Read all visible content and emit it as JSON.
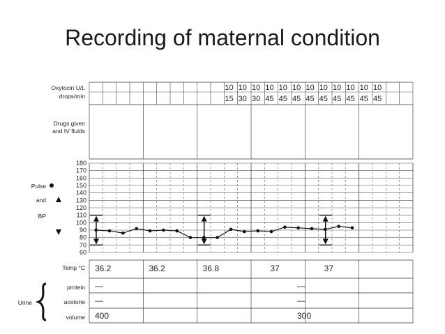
{
  "page": {
    "title": "Recording of maternal condition"
  },
  "labels": {
    "oxytocin_1": "Oxytocin U/L",
    "oxytocin_2": "drops/min",
    "drugs_1": "Drugs given",
    "drugs_2": "and IV fluids",
    "pulse": "Pulse",
    "and": "and",
    "bp": "BP",
    "temp": "Temp °C",
    "urine": "Urine",
    "protein": "protein",
    "acetone": "acetone",
    "volume": "volume"
  },
  "oxytocin": {
    "units": [
      "10",
      "10",
      "10",
      "10",
      "10",
      "10",
      "10",
      "10",
      "10",
      "10",
      "10",
      "10"
    ],
    "drops": [
      "15",
      "30",
      "30",
      "45",
      "45",
      "45",
      "45",
      "45",
      "45",
      "45",
      "45",
      "45"
    ],
    "start_column": 10
  },
  "temperature": [
    {
      "column": 0,
      "value": "36.2"
    },
    {
      "column": 4,
      "value": "36.2"
    },
    {
      "column": 8,
      "value": "36.8"
    },
    {
      "column": 13,
      "value": "37"
    },
    {
      "column": 17,
      "value": "37"
    }
  ],
  "urine": {
    "protein": [
      {
        "column": 0,
        "value": "—"
      },
      {
        "column": 15,
        "value": "—"
      }
    ],
    "acetone": [
      {
        "column": 0,
        "value": "—"
      },
      {
        "column": 15,
        "value": "—"
      }
    ],
    "volume": [
      {
        "column": 0,
        "value": "400"
      },
      {
        "column": 15,
        "value": "300"
      }
    ]
  },
  "chart_data": {
    "type": "line",
    "y_ticks": [
      180,
      170,
      160,
      150,
      140,
      130,
      120,
      110,
      100,
      90,
      80,
      70,
      60
    ],
    "ylim": [
      60,
      180
    ],
    "pulse_series": {
      "columns": [
        0,
        1,
        2,
        3,
        4,
        5,
        6,
        7,
        8,
        9,
        10,
        11,
        12,
        13,
        14,
        15,
        16,
        17,
        18,
        19
      ],
      "values": [
        90,
        89,
        86,
        92,
        89,
        90,
        89,
        80,
        80,
        80,
        91,
        88,
        89,
        88,
        94,
        93,
        92,
        91,
        95,
        93
      ]
    },
    "bp_series": [
      {
        "column": 0,
        "systolic": 110,
        "diastolic": 70
      },
      {
        "column": 8,
        "systolic": 110,
        "diastolic": 70
      },
      {
        "column": 17,
        "systolic": 110,
        "diastolic": 70
      }
    ]
  }
}
